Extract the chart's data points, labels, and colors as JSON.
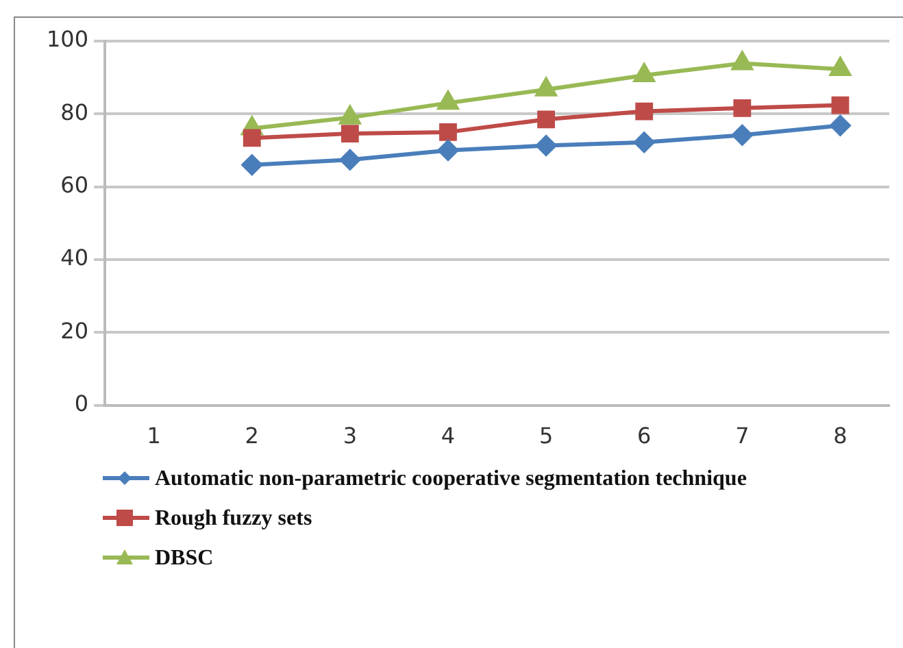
{
  "chart_data": {
    "type": "line",
    "categories": [
      "1",
      "2",
      "3",
      "4",
      "5",
      "6",
      "7",
      "8"
    ],
    "series": [
      {
        "name": "Automatic non-parametric cooperative segmentation technique",
        "color": "#4a7ebb",
        "marker": "diamond",
        "values": [
          null,
          66,
          67.4,
          70,
          71.3,
          72.2,
          74.2,
          76.8
        ]
      },
      {
        "name": "Rough fuzzy sets",
        "color": "#be4b48",
        "marker": "square",
        "values": [
          null,
          73.4,
          74.6,
          75,
          78.5,
          80.7,
          81.6,
          82.4
        ]
      },
      {
        "name": "DBSC",
        "color": "#98b954",
        "marker": "triangle",
        "values": [
          null,
          76,
          79,
          83,
          86.7,
          90.6,
          93.9,
          92.3
        ]
      }
    ],
    "ylim": [
      0,
      100
    ],
    "yticks": [
      0,
      20,
      40,
      60,
      80,
      100
    ],
    "grid": "y",
    "legend": "bottom"
  }
}
